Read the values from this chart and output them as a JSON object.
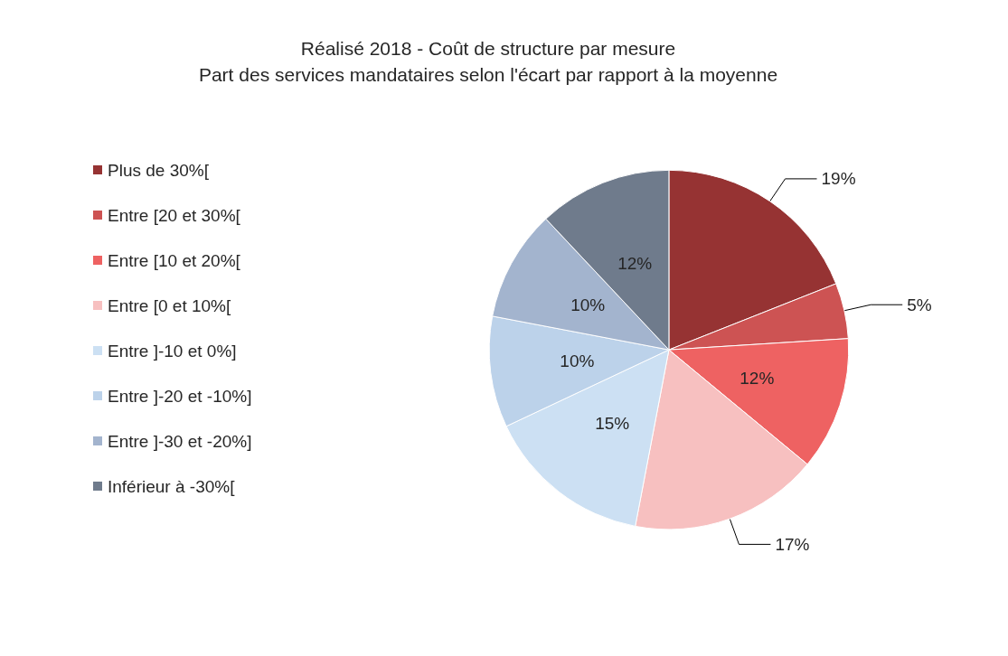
{
  "chart_data": {
    "type": "pie",
    "title": "Réalisé 2018 - Coût de structure par mesure",
    "subtitle": "Part des services mandataires selon l'écart par rapport à la moyenne",
    "categories": [
      "Plus de 30%[",
      "Entre [20 et 30%[",
      "Entre [10 et 20%[",
      "Entre [0 et 10%[",
      "Entre ]-10 et 0%]",
      "Entre ]-20 et -10%]",
      "Entre ]-30 et -20%]",
      "Inférieur à -30%["
    ],
    "values": [
      19,
      5,
      12,
      17,
      15,
      10,
      10,
      12
    ],
    "colors": [
      "#963333",
      "#cd5353",
      "#ee6262",
      "#f7c0c0",
      "#cce0f3",
      "#bcd2ea",
      "#a3b4ce",
      "#6f7b8c"
    ],
    "value_labels": [
      "19%",
      "5%",
      "12%",
      "17%",
      "15%",
      "10%",
      "10%",
      "12%"
    ],
    "legend": "left"
  }
}
